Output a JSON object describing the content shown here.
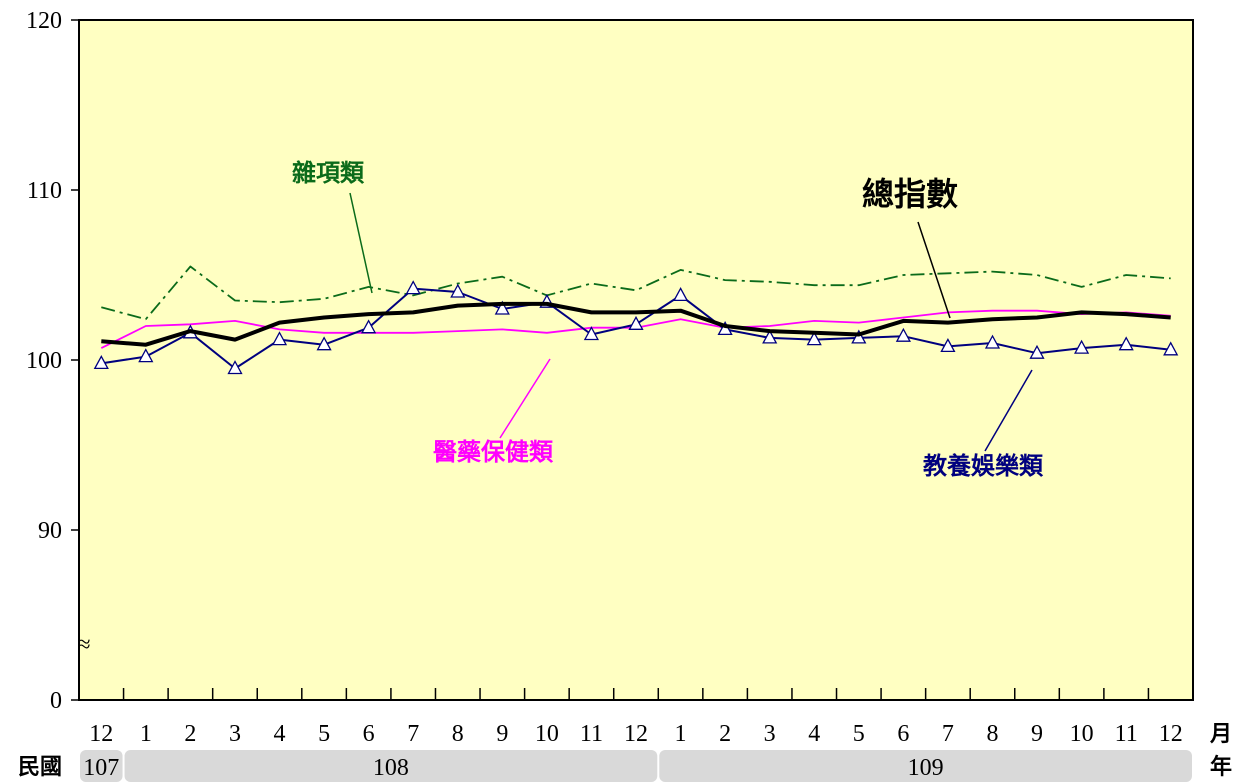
{
  "chart_data": {
    "type": "line",
    "ylim": [
      0,
      120
    ],
    "y_ticks": [
      "0",
      "90",
      "100",
      "110",
      "120"
    ],
    "y_break_symbol": "≈",
    "months": [
      "12",
      "1",
      "2",
      "3",
      "4",
      "5",
      "6",
      "7",
      "8",
      "9",
      "10",
      "11",
      "12",
      "1",
      "2",
      "3",
      "4",
      "5",
      "6",
      "7",
      "8",
      "9",
      "10",
      "11",
      "12"
    ],
    "month_unit": "月",
    "year_prefix": "民國",
    "year_unit": "年",
    "years": [
      {
        "label": "107",
        "start": 0,
        "end": 0
      },
      {
        "label": "108",
        "start": 1,
        "end": 12
      },
      {
        "label": "109",
        "start": 13,
        "end": 24
      }
    ],
    "series": [
      {
        "name": "總指數",
        "color": "#000000",
        "style": "thick",
        "values": [
          101.1,
          100.9,
          101.7,
          101.2,
          102.2,
          102.5,
          102.7,
          102.8,
          103.2,
          103.3,
          103.3,
          102.8,
          102.8,
          102.9,
          102.0,
          101.7,
          101.6,
          101.5,
          102.3,
          102.2,
          102.4,
          102.5,
          102.8,
          102.7,
          102.5
        ]
      },
      {
        "name": "雜項類",
        "color": "#0b6b1a",
        "style": "dashdot",
        "values": [
          103.1,
          102.4,
          105.5,
          103.5,
          103.4,
          103.6,
          104.3,
          103.8,
          104.5,
          104.9,
          103.8,
          104.5,
          104.1,
          105.3,
          104.7,
          104.6,
          104.4,
          104.4,
          105.0,
          105.1,
          105.2,
          105.0,
          104.3,
          105.0,
          104.8
        ]
      },
      {
        "name": "醫藥保健類",
        "color": "#ff00ff",
        "style": "thin",
        "values": [
          100.7,
          102.0,
          102.1,
          102.3,
          101.8,
          101.6,
          101.6,
          101.6,
          101.7,
          101.8,
          101.6,
          101.9,
          101.9,
          102.4,
          101.9,
          102.0,
          102.3,
          102.2,
          102.5,
          102.8,
          102.9,
          102.9,
          102.7,
          102.8,
          102.6
        ]
      },
      {
        "name": "教養娛樂類",
        "color": "#00007f",
        "style": "triangle",
        "values": [
          99.8,
          100.2,
          101.6,
          99.5,
          101.2,
          100.9,
          101.9,
          104.2,
          104.0,
          103.0,
          103.4,
          101.5,
          102.1,
          103.8,
          101.8,
          101.3,
          101.2,
          101.3,
          101.4,
          100.8,
          101.0,
          100.4,
          100.7,
          100.9,
          100.6
        ]
      }
    ]
  }
}
